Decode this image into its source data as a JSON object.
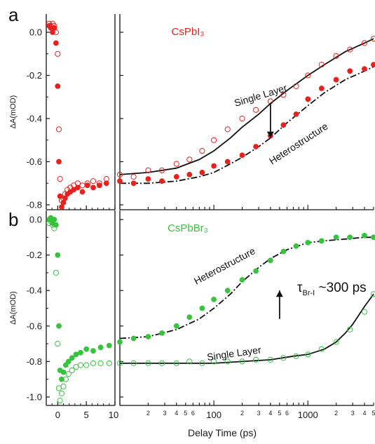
{
  "xlabel": "Delay Time (ps)",
  "colors": {
    "red": "#e8201e",
    "green": "#35c43c",
    "axis": "#111111"
  },
  "chart_data": [
    {
      "panel": "a",
      "type": "scatter",
      "title": "CsPbI₃",
      "ylabel": "ΔA(mOD)",
      "ylim": [
        -0.83,
        0.07
      ],
      "yticks": [
        "0.0",
        "-0.2",
        "-0.4",
        "-0.6",
        "-0.8"
      ],
      "x_axis": {
        "linear_range": [
          -2,
          10
        ],
        "log_range": [
          10,
          5000
        ],
        "linear_ticks": [
          "0",
          "5",
          "10"
        ],
        "log_major_ticks": [
          "100",
          "1000"
        ],
        "log_minor_labels": [
          "2",
          "3",
          "4",
          "5",
          "6"
        ]
      },
      "annotations": [
        "Single Layer",
        "Heterostructure"
      ],
      "series": [
        {
          "style": "open circles",
          "color": "red",
          "label": "Single Layer",
          "x": [
            -1.5,
            -1.2,
            -0.9,
            -0.6,
            -0.3,
            0,
            0.2,
            0.4,
            0.7,
            1,
            1.3,
            1.7,
            2.2,
            2.8,
            3.5,
            4.3,
            5.2,
            6.2,
            7.3,
            8.5,
            10,
            14,
            20,
            28,
            40,
            55,
            75,
            100,
            140,
            200,
            280,
            400,
            550,
            750,
            1000,
            1400,
            2000,
            2800,
            4000,
            5000
          ],
          "y": [
            0.04,
            0.03,
            0.04,
            0.03,
            0.0,
            -0.1,
            -0.45,
            -0.68,
            -0.78,
            -0.77,
            -0.75,
            -0.73,
            -0.72,
            -0.71,
            -0.7,
            -0.71,
            -0.7,
            -0.69,
            -0.7,
            -0.68,
            -0.66,
            -0.67,
            -0.64,
            -0.64,
            -0.61,
            -0.59,
            -0.55,
            -0.5,
            -0.45,
            -0.4,
            -0.36,
            -0.32,
            -0.29,
            -0.25,
            -0.2,
            -0.15,
            -0.11,
            -0.08,
            -0.05,
            -0.03
          ]
        },
        {
          "style": "filled circles",
          "color": "red",
          "label": "Heterostructure",
          "x": [
            -1.5,
            -1.2,
            -0.9,
            -0.6,
            -0.3,
            0,
            0.2,
            0.4,
            0.7,
            1,
            1.3,
            1.7,
            2.2,
            2.8,
            3.5,
            4.3,
            5.2,
            6.2,
            7.3,
            8.5,
            10,
            14,
            20,
            28,
            40,
            55,
            75,
            100,
            140,
            200,
            280,
            400,
            550,
            750,
            1000,
            1400,
            2000,
            2800,
            4000,
            5000
          ],
          "y": [
            0.03,
            0.02,
            0.0,
            0.02,
            -0.05,
            -0.25,
            -0.6,
            -0.76,
            -0.81,
            -0.79,
            -0.77,
            -0.75,
            -0.74,
            -0.73,
            -0.72,
            -0.74,
            -0.71,
            -0.72,
            -0.71,
            -0.7,
            -0.69,
            -0.7,
            -0.68,
            -0.69,
            -0.67,
            -0.66,
            -0.65,
            -0.62,
            -0.6,
            -0.57,
            -0.53,
            -0.48,
            -0.43,
            -0.38,
            -0.31,
            -0.26,
            -0.22,
            -0.18,
            -0.17,
            -0.15
          ]
        }
      ],
      "fits": [
        {
          "style": "solid",
          "x": [
            10,
            20,
            40,
            70,
            100,
            150,
            200,
            300,
            400,
            600,
            1000,
            1500,
            2500,
            4000,
            5000
          ],
          "y": [
            -0.66,
            -0.65,
            -0.63,
            -0.59,
            -0.55,
            -0.49,
            -0.44,
            -0.38,
            -0.33,
            -0.27,
            -0.2,
            -0.15,
            -0.09,
            -0.05,
            -0.03
          ]
        },
        {
          "style": "dash-dot",
          "x": [
            10,
            20,
            40,
            70,
            100,
            150,
            200,
            300,
            400,
            600,
            1000,
            1500,
            2500,
            4000,
            5000
          ],
          "y": [
            -0.7,
            -0.7,
            -0.69,
            -0.67,
            -0.65,
            -0.61,
            -0.58,
            -0.53,
            -0.49,
            -0.42,
            -0.34,
            -0.28,
            -0.22,
            -0.18,
            -0.16
          ]
        }
      ],
      "arrow": {
        "x": 400,
        "y_from": -0.33,
        "y_to": -0.49
      }
    },
    {
      "panel": "b",
      "type": "scatter",
      "title": "CsPbBr₃",
      "ylabel": "ΔA(mOD)",
      "ylim": [
        -1.05,
        0.03
      ],
      "yticks": [
        "0.0",
        "-0.2",
        "-0.4",
        "-0.6",
        "-0.8",
        "-1.0"
      ],
      "x_axis": {
        "linear_range": [
          -2,
          10
        ],
        "log_range": [
          10,
          5000
        ],
        "linear_ticks": [
          "0",
          "5",
          "10"
        ],
        "log_major_ticks": [
          "100",
          "1000"
        ],
        "log_minor_labels": [
          "2",
          "3",
          "4",
          "5",
          "6"
        ]
      },
      "annotations": [
        "Heterostructure",
        "Single Layer",
        "τ",
        "Br-I",
        " ~300 ps"
      ],
      "series": [
        {
          "style": "filled circles",
          "color": "green",
          "label": "Heterostructure",
          "x": [
            -1.5,
            -1.2,
            -0.9,
            -0.6,
            -0.3,
            0,
            0.2,
            0.4,
            0.7,
            1,
            1.4,
            1.9,
            2.5,
            3.2,
            4,
            5,
            6.2,
            7.5,
            9,
            10,
            14,
            20,
            28,
            40,
            55,
            75,
            100,
            140,
            200,
            280,
            400,
            550,
            750,
            1000,
            1400,
            2000,
            2800,
            4000,
            5000
          ],
          "y": [
            0.0,
            0.01,
            -0.02,
            0.0,
            -0.03,
            -0.2,
            -0.6,
            -0.85,
            -0.9,
            -0.86,
            -0.82,
            -0.8,
            -0.78,
            -0.76,
            -0.75,
            -0.73,
            -0.74,
            -0.72,
            -0.71,
            -0.69,
            -0.67,
            -0.66,
            -0.64,
            -0.6,
            -0.55,
            -0.5,
            -0.45,
            -0.4,
            -0.34,
            -0.29,
            -0.23,
            -0.18,
            -0.15,
            -0.13,
            -0.12,
            -0.1,
            -0.1,
            -0.09,
            -0.1
          ]
        },
        {
          "style": "open circles",
          "color": "green",
          "label": "Single Layer",
          "x": [
            -1.5,
            -1.2,
            -0.9,
            -0.6,
            -0.3,
            0,
            0.2,
            0.4,
            0.7,
            1,
            1.4,
            1.9,
            2.5,
            3.2,
            4,
            5,
            6.2,
            7.5,
            9,
            10,
            14,
            20,
            28,
            40,
            55,
            75,
            100,
            140,
            200,
            280,
            400,
            550,
            750,
            1000,
            1400,
            2000,
            2800,
            4000,
            5000
          ],
          "y": [
            -0.02,
            -0.01,
            -0.03,
            -0.05,
            -0.3,
            -0.7,
            -0.95,
            -1.02,
            -0.98,
            -0.94,
            -0.9,
            -0.87,
            -0.85,
            -0.83,
            -0.82,
            -0.82,
            -0.81,
            -0.81,
            -0.81,
            -0.81,
            -0.81,
            -0.81,
            -0.81,
            -0.81,
            -0.8,
            -0.81,
            -0.8,
            -0.8,
            -0.8,
            -0.79,
            -0.79,
            -0.78,
            -0.77,
            -0.76,
            -0.73,
            -0.69,
            -0.62,
            -0.52,
            -0.42
          ]
        }
      ],
      "fits": [
        {
          "style": "dash-dot",
          "x": [
            10,
            20,
            40,
            70,
            100,
            150,
            200,
            300,
            400,
            600,
            1000,
            1500,
            2500,
            4000,
            5000
          ],
          "y": [
            -0.67,
            -0.66,
            -0.62,
            -0.56,
            -0.5,
            -0.42,
            -0.35,
            -0.27,
            -0.22,
            -0.17,
            -0.13,
            -0.12,
            -0.11,
            -0.1,
            -0.1
          ]
        },
        {
          "style": "solid",
          "x": [
            10,
            20,
            40,
            70,
            100,
            200,
            400,
            700,
            1000,
            1500,
            2000,
            2500,
            3000,
            4000,
            5000
          ],
          "y": [
            -0.81,
            -0.81,
            -0.81,
            -0.81,
            -0.81,
            -0.8,
            -0.79,
            -0.77,
            -0.76,
            -0.73,
            -0.69,
            -0.64,
            -0.59,
            -0.49,
            -0.42
          ]
        }
      ],
      "arrow": {
        "x": 500,
        "y_from": -0.56,
        "y_to": -0.4
      }
    }
  ]
}
